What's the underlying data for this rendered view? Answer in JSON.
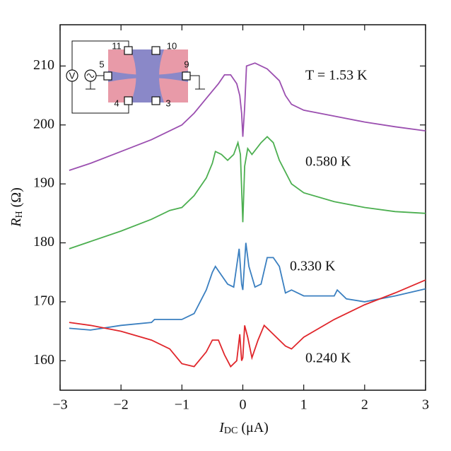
{
  "chart_data": {
    "type": "line",
    "xlabel": [
      "I",
      "DC",
      " (μA)"
    ],
    "ylabel": [
      "R",
      "H",
      " (Ω)"
    ],
    "xlim": [
      -3,
      3
    ],
    "xticks": [
      {
        "value": -3,
        "label": "−3"
      },
      {
        "value": -2,
        "label": "−2"
      },
      {
        "value": -1,
        "label": "−1"
      },
      0,
      1,
      2,
      3
    ],
    "ylim": [
      155,
      217
    ],
    "yticks": [
      160,
      170,
      180,
      190,
      200,
      210
    ],
    "series": [
      {
        "name": "T = 1.53  K",
        "color": "#9b4fb0",
        "x": [
          -2.85,
          -2.5,
          -2,
          -1.5,
          -1,
          -0.8,
          -0.6,
          -0.4,
          -0.3,
          -0.2,
          -0.1,
          -0.05,
          -0.02,
          0,
          0.03,
          0.06,
          0.2,
          0.4,
          0.6,
          0.7,
          0.8,
          1,
          1.5,
          2,
          2.5,
          3
        ],
        "values": [
          192.3,
          193.5,
          195.5,
          197.5,
          200,
          202,
          204.5,
          207,
          208.5,
          208.5,
          207,
          205,
          202,
          198,
          203,
          210,
          210.5,
          209.5,
          207.5,
          205,
          203.5,
          202.5,
          201.5,
          200.5,
          199.7,
          199
        ]
      },
      {
        "name": "0.580 K",
        "color": "#4caf50",
        "x": [
          -2.85,
          -2,
          -1.5,
          -1.2,
          -1,
          -0.8,
          -0.6,
          -0.5,
          -0.45,
          -0.35,
          -0.25,
          -0.15,
          -0.08,
          -0.04,
          0,
          0.03,
          0.08,
          0.15,
          0.3,
          0.4,
          0.5,
          0.6,
          0.8,
          1,
          1.5,
          2,
          2.5,
          3
        ],
        "values": [
          179,
          182,
          184,
          185.5,
          186,
          188,
          191,
          193.5,
          195.5,
          195,
          194,
          195,
          197,
          195,
          183.5,
          193,
          196,
          195,
          197,
          198,
          197,
          194,
          190,
          188.5,
          187,
          186,
          185.3,
          185
        ]
      },
      {
        "name": "0.330 K",
        "color": "#3a7fc0",
        "x": [
          -2.85,
          -2.5,
          -2,
          -1.5,
          -1.45,
          -1,
          -0.8,
          -0.6,
          -0.5,
          -0.45,
          -0.35,
          -0.25,
          -0.15,
          -0.06,
          -0.02,
          0,
          0.05,
          0.1,
          0.2,
          0.3,
          0.4,
          0.5,
          0.6,
          0.7,
          0.8,
          1,
          1.5,
          1.55,
          1.7,
          2,
          2.5,
          3
        ],
        "values": [
          165.5,
          165.2,
          166,
          166.5,
          167,
          167,
          168,
          172,
          175,
          176,
          174.5,
          173,
          172.5,
          179,
          173,
          172,
          180,
          176,
          172.5,
          173,
          177.5,
          177.5,
          176,
          171.5,
          172,
          171,
          171,
          172,
          170.5,
          170,
          171,
          172.2
        ]
      },
      {
        "name": "0.240 K",
        "color": "#e0262b",
        "x": [
          -2.85,
          -2.5,
          -2,
          -1.5,
          -1.2,
          -1,
          -0.8,
          -0.6,
          -0.5,
          -0.4,
          -0.3,
          -0.2,
          -0.1,
          -0.05,
          -0.02,
          0,
          0.03,
          0.08,
          0.15,
          0.25,
          0.35,
          0.45,
          0.55,
          0.7,
          0.8,
          1,
          1.5,
          2,
          2.5,
          3
        ],
        "values": [
          166.5,
          166,
          165,
          163.5,
          162,
          159.5,
          159,
          161.5,
          163.5,
          163.5,
          161,
          159,
          160,
          164.5,
          160,
          160.5,
          166,
          164,
          160.5,
          163.5,
          166,
          165,
          164,
          162.5,
          162,
          164,
          167,
          169.5,
          171.5,
          173.7
        ]
      }
    ],
    "inset_labels": [
      "V",
      "5",
      "11",
      "10",
      "9",
      "4",
      "3"
    ]
  }
}
